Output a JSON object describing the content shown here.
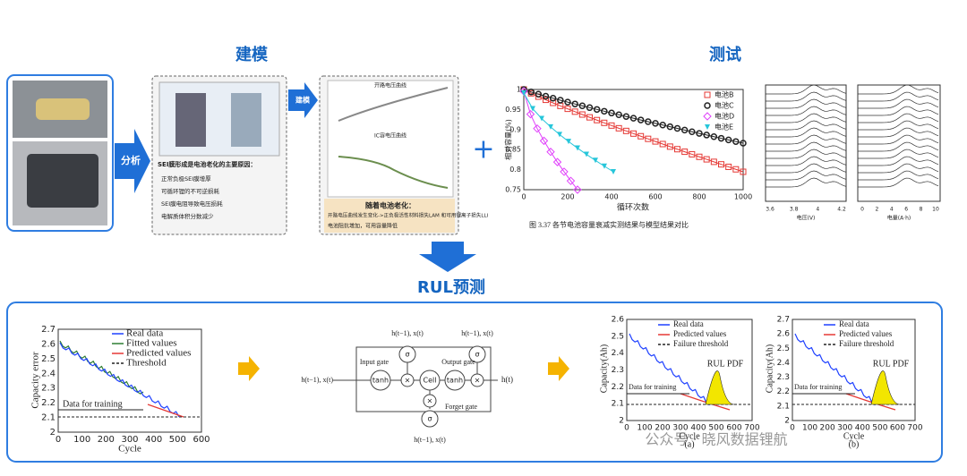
{
  "header": {
    "model_title": "建模",
    "test_title": "测试",
    "rul_title": "RUL预测"
  },
  "arrows": {
    "analyze": "分析",
    "model": "建模"
  },
  "model_box": {
    "heading": "SEI膜形成是电池老化的主要原因：",
    "items": [
      "正常负极SEI膜增厚",
      "可循环锂的不可逆损耗",
      "SEI膜电阻导致电压损耗",
      "电解质体积分数减少"
    ]
  },
  "aging_box": {
    "chart_titles": [
      "开路电压曲线",
      "IC容电压曲线"
    ],
    "heading": "随着电池老化：",
    "items": [
      "开路电压曲线发生变化->正负极活性材料损失LAM 和可用锂离子损失LLI",
      "电池阻抗增加，可用容量降低"
    ]
  },
  "capacity_chart": {
    "ylabel": "相对容量(%)",
    "xlabel": "循环次数",
    "yticks": [
      "0.75",
      "0.8",
      "0.85",
      "0.9",
      "0.95",
      "1"
    ],
    "xticks": [
      "0",
      "200",
      "400",
      "600",
      "800",
      "1000"
    ],
    "legend": [
      "电池B",
      "电池C",
      "电池D",
      "电池E"
    ],
    "caption": "图 3.37 各节电池容量衰减实测结果与模型结果对比"
  },
  "ic_charts": {
    "left": {
      "xlabel": "电压(V)",
      "xticks": [
        "3.6",
        "3.8",
        "4",
        "4.2"
      ]
    },
    "right": {
      "xlabel": "电量(A·h)",
      "xticks": [
        "0",
        "2",
        "4",
        "6",
        "8",
        "10"
      ]
    }
  },
  "rul_error_chart": {
    "ylabel": "Capacity error",
    "xlabel": "Cycle",
    "yticks": [
      "2",
      "2.1",
      "2.2",
      "2.3",
      "2.4",
      "2.5",
      "2.6",
      "2.7"
    ],
    "xticks": [
      "0",
      "100",
      "200",
      "300",
      "400",
      "500",
      "600"
    ],
    "legend": [
      "Real data",
      "Fitted values",
      "Predicted values",
      "Threshold"
    ],
    "annotation": "Data for training"
  },
  "lstm": {
    "input_gate": "Input gate",
    "output_gate": "Output gate",
    "forget_gate": "Forget gate",
    "cell": "Cell",
    "tanh": "tanh",
    "sigma": "σ",
    "x": "×",
    "input": "h(t−1), x(t)",
    "output": "h(t)"
  },
  "rul_charts": [
    {
      "panel": "(a)",
      "ylabel": "Capacity(Ah)",
      "xlabel": "Cycle",
      "yticks": [
        "2",
        "2.1",
        "2.2",
        "2.3",
        "2.4",
        "2.5",
        "2.6"
      ],
      "xticks": [
        "0",
        "100",
        "200",
        "300",
        "400",
        "500",
        "600",
        "700"
      ],
      "legend": [
        "Real data",
        "Predicted values",
        "Failure threshold"
      ],
      "pdf": "RUL PDF",
      "annotation": "Data for training"
    },
    {
      "panel": "(b)",
      "ylabel": "Capacity(Ah)",
      "xlabel": "Cycle",
      "yticks": [
        "2",
        "2.1",
        "2.2",
        "2.3",
        "2.4",
        "2.5",
        "2.6",
        "2.7"
      ],
      "xticks": [
        "0",
        "100",
        "200",
        "300",
        "400",
        "500",
        "600",
        "700"
      ],
      "legend": [
        "Real data",
        "Predicted values",
        "Failure threshold"
      ],
      "pdf": "RUL PDF",
      "annotation": "Data for training"
    }
  ],
  "watermark": "公众号 · 晓风数据锂航"
}
